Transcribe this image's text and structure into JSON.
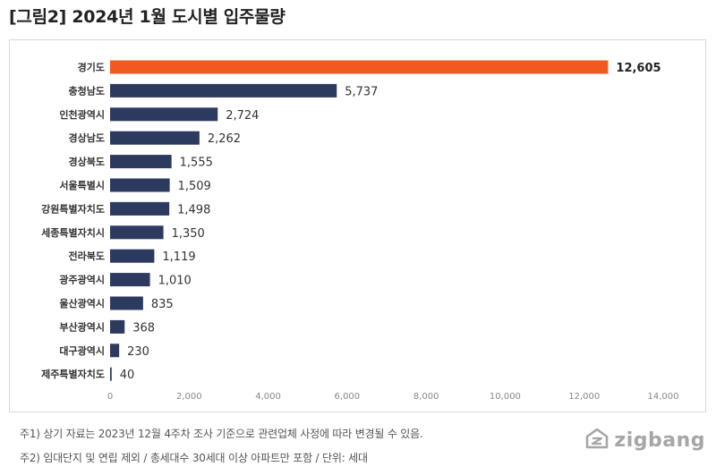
{
  "figure_title": "[그림2]  2024년 1월 도시별 입주물량",
  "notes": {
    "note1": "주1) 상기 자료는 2023년 12월 4주차 조사 기준으로 관련업체 사정에 따라 변경될 수 있음.",
    "note2": "주2) 임대단지 및 연립 제외 / 총세대수 30세대 이상 아파트만 포함 / 단위: 세대"
  },
  "brand": {
    "name": "zigbang",
    "icon": "zigbang-logo-icon"
  },
  "colors": {
    "highlight": "#F05A22",
    "bar": "#2B3A5E",
    "axis_text": "#888888",
    "grid": "#e6e6e6"
  },
  "chart_data": {
    "type": "bar",
    "orientation": "horizontal",
    "categories": [
      "경기도",
      "충청남도",
      "인천광역시",
      "경상남도",
      "경상북도",
      "서울특별시",
      "강원특별자치도",
      "세종특별자치시",
      "전라북도",
      "광주광역시",
      "울산광역시",
      "부산광역시",
      "대구광역시",
      "제주특별자치도"
    ],
    "values": [
      12605,
      5737,
      2724,
      2262,
      1555,
      1509,
      1498,
      1350,
      1119,
      1010,
      835,
      368,
      230,
      40
    ],
    "value_labels": [
      "12,605",
      "5,737",
      "2,724",
      "2,262",
      "1,555",
      "1,509",
      "1,498",
      "1,350",
      "1,119",
      "1,010",
      "835",
      "368",
      "230",
      "40"
    ],
    "highlight_index": 0,
    "xlim": [
      0,
      14000
    ],
    "x_ticks": [
      0,
      2000,
      4000,
      6000,
      8000,
      10000,
      12000,
      14000
    ],
    "x_tick_labels": [
      "0",
      "2,000",
      "4,000",
      "6,000",
      "8,000",
      "10,000",
      "12,000",
      "14,000"
    ],
    "title": "",
    "xlabel": "",
    "ylabel": "",
    "grid": false,
    "legend": "none"
  }
}
